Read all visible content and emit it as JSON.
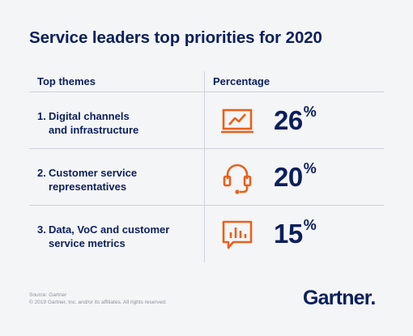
{
  "title": "Service leaders top priorities for 2020",
  "colors": {
    "accent": "#e8601c",
    "text": "#0b1f5c",
    "background": "#f4f5f6"
  },
  "chart_data": {
    "type": "table",
    "title": "Service leaders top priorities for 2020",
    "columns": [
      "Top themes",
      "Percentage"
    ],
    "rows": [
      {
        "num": "1.",
        "line1": "Digital channels",
        "line2": "and infrastructure",
        "value": 26,
        "pct_num": "26",
        "pct_sym": "%",
        "icon": "monitor-chart-icon"
      },
      {
        "num": "2.",
        "line1": "Customer service",
        "line2": "representatives",
        "value": 20,
        "pct_num": "20",
        "pct_sym": "%",
        "icon": "headset-icon"
      },
      {
        "num": "3.",
        "line1": "Data, VoC and customer",
        "line2": "service metrics",
        "value": 15,
        "pct_num": "15",
        "pct_sym": "%",
        "icon": "speech-bubble-chart-icon"
      }
    ]
  },
  "footer": {
    "source": "Source: Gartner",
    "copyright": "© 2019 Gartner, Inc. and/or its affiliates. All rights reserved.",
    "logo": "Gartner",
    "logo_dot": "."
  }
}
